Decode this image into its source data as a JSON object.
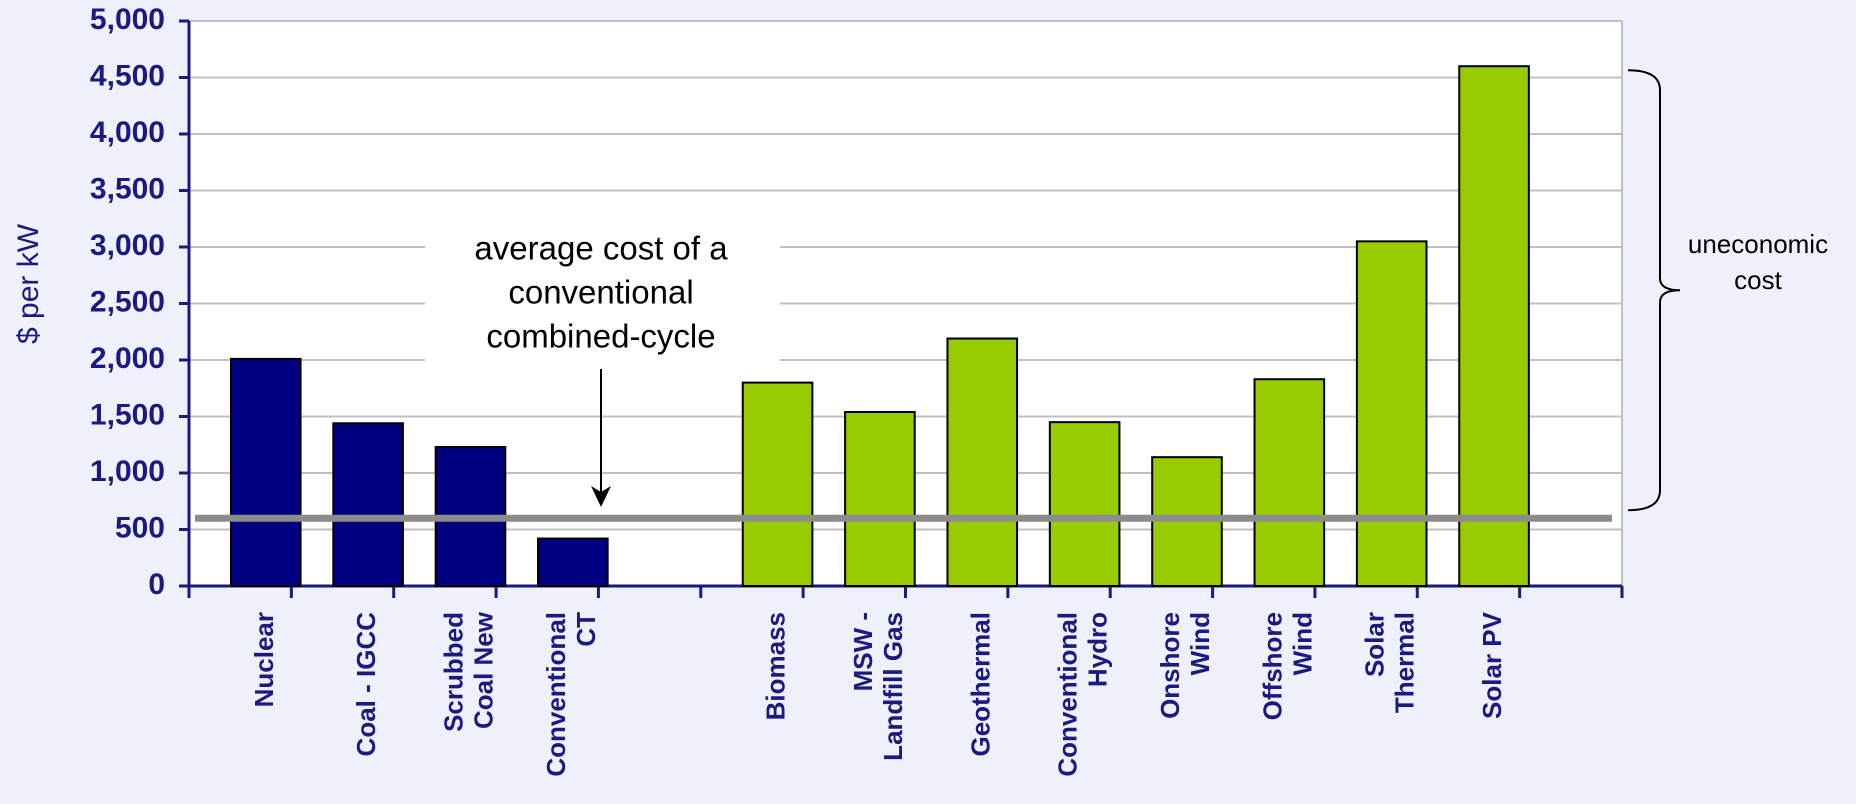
{
  "chart_data": {
    "type": "bar",
    "y_label": "$ per kW",
    "categories": [
      "Nuclear",
      "Coal - IGCC",
      "Scrubbed\nCoal New",
      "Conventional\nCT",
      null,
      "Biomass",
      "MSW -\nLandfill Gas",
      "Geothermal",
      "Conventional\nHydro",
      "Onshore\nWind",
      "Offshore\nWind",
      "Solar\nThermal",
      "Solar PV"
    ],
    "values": [
      2010,
      1440,
      1230,
      420,
      null,
      1800,
      1540,
      2190,
      1450,
      1140,
      1830,
      3050,
      4600
    ],
    "colors": [
      "#000080",
      "#000080",
      "#000080",
      "#000080",
      null,
      "#99cc00",
      "#99cc00",
      "#99cc00",
      "#99cc00",
      "#99cc00",
      "#99cc00",
      "#99cc00",
      "#99cc00"
    ],
    "ylim": [
      0,
      5000
    ],
    "yticks": [
      0,
      {
        "value": 500,
        "label": "500"
      },
      {
        "value": 1000,
        "label": "1,000"
      },
      {
        "value": 1500,
        "label": "1,500"
      },
      {
        "value": 2000,
        "label": "2,000"
      },
      {
        "value": 2500,
        "label": "2,500"
      },
      {
        "value": 3000,
        "label": "3,000"
      },
      {
        "value": 3500,
        "label": "3,500"
      },
      {
        "value": 4000,
        "label": "4,000"
      },
      {
        "value": 4500,
        "label": "4,500"
      },
      {
        "value": 5000,
        "label": "5,000"
      }
    ],
    "grid": true,
    "average_line": 600,
    "annotation": [
      "average cost of a",
      "conventional",
      "combined-cycle"
    ],
    "bracket_label": [
      "uneconomic",
      "cost"
    ]
  }
}
